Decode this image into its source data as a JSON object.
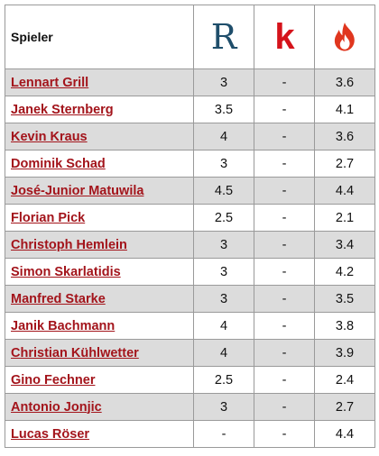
{
  "header": {
    "player_label": "Spieler",
    "sources": [
      {
        "name": "r-logo-icon",
        "letter": "R",
        "color": "#1f4e6b"
      },
      {
        "name": "k-logo-icon",
        "letter": "k",
        "color": "#d5131b"
      },
      {
        "name": "flame-logo-icon",
        "color": "#e0361e"
      }
    ]
  },
  "players": [
    {
      "name": "Lennart Grill",
      "r": "3",
      "k": "-",
      "f": "3.6"
    },
    {
      "name": "Janek Sternberg",
      "r": "3.5",
      "k": "-",
      "f": "4.1"
    },
    {
      "name": "Kevin Kraus",
      "r": "4",
      "k": "-",
      "f": "3.6"
    },
    {
      "name": "Dominik Schad",
      "r": "3",
      "k": "-",
      "f": "2.7"
    },
    {
      "name": "José-Junior Matuwila",
      "r": "4.5",
      "k": "-",
      "f": "4.4"
    },
    {
      "name": "Florian Pick",
      "r": "2.5",
      "k": "-",
      "f": "2.1"
    },
    {
      "name": "Christoph Hemlein",
      "r": "3",
      "k": "-",
      "f": "3.4"
    },
    {
      "name": "Simon Skarlatidis",
      "r": "3",
      "k": "-",
      "f": "4.2"
    },
    {
      "name": "Manfred Starke",
      "r": "3",
      "k": "-",
      "f": "3.5"
    },
    {
      "name": "Janik Bachmann",
      "r": "4",
      "k": "-",
      "f": "3.8"
    },
    {
      "name": "Christian Kühlwetter",
      "r": "4",
      "k": "-",
      "f": "3.9"
    },
    {
      "name": "Gino Fechner",
      "r": "2.5",
      "k": "-",
      "f": "2.4"
    },
    {
      "name": "Antonio Jonjic",
      "r": "3",
      "k": "-",
      "f": "2.7"
    },
    {
      "name": "Lucas Röser",
      "r": "-",
      "k": "-",
      "f": "4.4"
    }
  ]
}
